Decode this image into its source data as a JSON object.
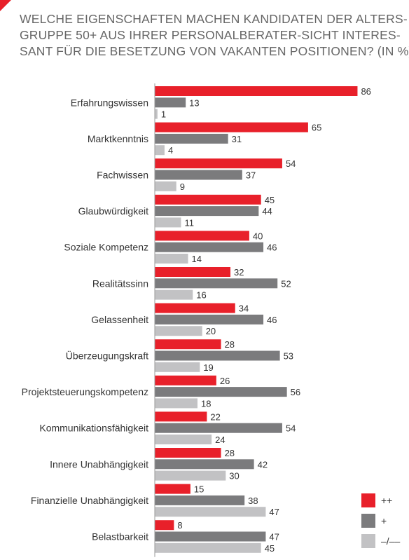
{
  "title_lines": [
    "WELCHE EIGENSCHAFTEN MACHEN KANDIDATEN DER ALTERS-",
    "GRUPPE 50+ AUS IHRER PERSONALBERATER-SICHT INTERES-",
    "SANT FÜR DIE BESETZUNG VON VAKANTEN POSITIONEN? (IN %)"
  ],
  "colors": {
    "accent": "#e8202a",
    "series": [
      "#e8202a",
      "#7b7b7d",
      "#c2c2c4"
    ]
  },
  "chart_data": {
    "type": "bar",
    "orientation": "horizontal",
    "title": "WELCHE EIGENSCHAFTEN MACHEN KANDIDATEN DER ALTERS-GRUPPE 50+ AUS IHRER PERSONALBERATER-SICHT INTERES-SANT FÜR DIE BESETZUNG VON VAKANTEN POSITIONEN? (IN %)",
    "categories": [
      "Erfahrungswissen",
      "Marktkenntnis",
      "Fachwissen",
      "Glaubwürdigkeit",
      "Soziale Kompetenz",
      "Realitätssinn",
      "Gelassenheit",
      "Überzeugungskraft",
      "Projektsteuerungskompetenz",
      "Kommunikationsfähigkeit",
      "Innere Unabhängigkeit",
      "Finanzielle Unabhängigkeit",
      "Belastbarkeit"
    ],
    "series": [
      {
        "name": "++",
        "values": [
          86,
          65,
          54,
          45,
          40,
          32,
          34,
          28,
          26,
          22,
          28,
          15,
          8
        ]
      },
      {
        "name": "+",
        "values": [
          13,
          31,
          37,
          44,
          46,
          52,
          46,
          53,
          56,
          54,
          42,
          38,
          47
        ]
      },
      {
        "name": "–/––",
        "values": [
          1,
          4,
          9,
          11,
          14,
          16,
          20,
          19,
          18,
          24,
          30,
          47,
          45
        ]
      }
    ],
    "xlim": [
      0,
      100
    ],
    "grid": false,
    "legend_position": "bottom-right",
    "xlabel": "",
    "ylabel": ""
  }
}
